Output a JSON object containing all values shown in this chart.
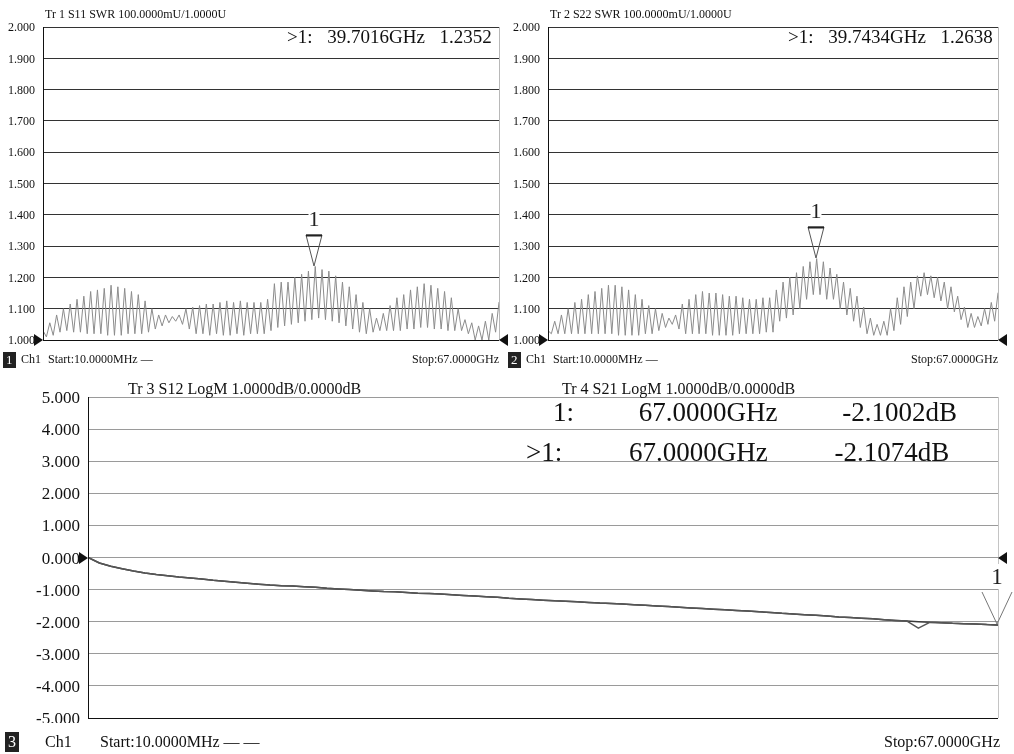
{
  "chart_data": [
    {
      "type": "line",
      "title": "Tr 1 S11 SWR 100.0000mU/1.0000U",
      "categories": [
        null,
        null,
        null,
        null,
        null,
        null,
        null,
        null,
        null,
        null,
        null,
        null,
        null,
        null,
        null,
        null,
        null,
        null,
        null,
        null,
        null,
        null,
        null,
        null,
        null,
        null,
        null,
        null,
        null,
        null,
        null,
        null,
        null,
        null,
        null,
        null,
        null,
        null,
        null,
        null,
        null,
        null,
        null,
        null,
        null,
        null,
        null,
        null,
        null,
        null,
        null,
        null,
        null,
        null,
        null,
        null,
        null,
        null,
        null,
        null,
        null,
        null,
        null,
        null,
        null,
        null,
        null,
        null,
        null,
        null,
        null,
        null,
        null,
        null,
        null,
        null,
        null,
        null,
        null,
        null,
        null,
        null,
        null,
        null,
        null,
        null,
        null,
        null,
        null,
        null,
        null,
        null,
        null,
        null,
        null,
        null,
        null,
        null,
        null,
        null,
        null,
        null,
        null,
        null,
        null,
        null,
        null,
        null,
        null,
        null,
        null,
        null,
        null,
        null,
        null,
        null,
        null,
        null,
        null,
        null,
        null,
        null,
        null,
        null,
        null,
        null,
        null,
        null,
        null,
        null,
        null,
        null,
        null,
        null,
        null
      ],
      "series": [
        {
          "color": "#8c8c8c",
          "values": [
            1.03,
            1.01,
            1.055,
            1.015,
            1.08,
            1.025,
            1.1,
            1.03,
            1.115,
            1.025,
            1.13,
            1.025,
            1.14,
            1.02,
            1.155,
            1.02,
            1.16,
            1.02,
            1.165,
            1.015,
            1.175,
            1.015,
            1.17,
            1.015,
            1.165,
            1.02,
            1.155,
            1.02,
            1.145,
            1.02,
            1.125,
            1.025,
            1.1,
            1.035,
            1.08,
            1.045,
            1.08,
            1.055,
            1.075,
            1.06,
            1.08,
            1.05,
            1.1,
            1.035,
            1.105,
            1.02,
            1.11,
            1.02,
            1.115,
            1.015,
            1.115,
            1.02,
            1.12,
            1.015,
            1.125,
            1.015,
            1.12,
            1.02,
            1.125,
            1.015,
            1.12,
            1.02,
            1.12,
            1.02,
            1.12,
            1.02,
            1.13,
            1.03,
            1.18,
            1.04,
            1.185,
            1.045,
            1.185,
            1.05,
            1.2,
            1.055,
            1.21,
            1.06,
            1.22,
            1.065,
            1.235,
            1.07,
            1.225,
            1.065,
            1.22,
            1.06,
            1.205,
            1.055,
            1.185,
            1.045,
            1.17,
            1.035,
            1.145,
            1.025,
            1.12,
            1.02,
            1.1,
            1.025,
            1.07,
            1.03,
            1.085,
            1.03,
            1.11,
            1.03,
            1.135,
            1.03,
            1.145,
            1.035,
            1.16,
            1.035,
            1.17,
            1.04,
            1.18,
            1.04,
            1.175,
            1.035,
            1.165,
            1.035,
            1.155,
            1.03,
            1.135,
            1.03,
            1.1,
            1.03,
            1.065,
            1.02,
            1.055,
            1,
            1.045,
            1,
            1.06,
            1,
            1.085,
            1.025,
            1.12
          ]
        }
      ],
      "ylim": [
        1,
        2
      ],
      "yticks": [
        {
          "value": 1,
          "label": "1.000"
        },
        {
          "value": 1.1,
          "label": "1.100"
        },
        {
          "value": 1.2,
          "label": "1.200"
        },
        {
          "value": 1.3,
          "label": "1.300"
        },
        {
          "value": 1.4,
          "label": "1.400"
        },
        {
          "value": 1.5,
          "label": "1.500"
        },
        {
          "value": 1.6,
          "label": "1.600"
        },
        {
          "value": 1.7,
          "label": "1.700"
        },
        {
          "value": 1.8,
          "label": "1.800"
        },
        {
          "value": 1.9,
          "label": "1.900"
        },
        {
          "value": 2,
          "label": "2.000"
        }
      ],
      "tick_labels": "y",
      "grid": true,
      "annotations": [
        ">1: 39.7016GHz 1.2352",
        "1",
        "Ch1",
        "Start:10.0000MHz —",
        "Stop:67.0000GHz",
        "1"
      ]
    },
    {
      "type": "line",
      "title": "Tr 2 S22 SWR 100.0000mU/1.0000U",
      "categories": [
        null,
        null,
        null,
        null,
        null,
        null,
        null,
        null,
        null,
        null,
        null,
        null,
        null,
        null,
        null,
        null,
        null,
        null,
        null,
        null,
        null,
        null,
        null,
        null,
        null,
        null,
        null,
        null,
        null,
        null,
        null,
        null,
        null,
        null,
        null,
        null,
        null,
        null,
        null,
        null,
        null,
        null,
        null,
        null,
        null,
        null,
        null,
        null,
        null,
        null,
        null,
        null,
        null,
        null,
        null,
        null,
        null,
        null,
        null,
        null,
        null,
        null,
        null,
        null,
        null,
        null,
        null,
        null,
        null,
        null,
        null,
        null,
        null,
        null,
        null,
        null,
        null,
        null,
        null,
        null,
        null,
        null,
        null,
        null,
        null,
        null,
        null,
        null,
        null,
        null,
        null,
        null,
        null,
        null,
        null,
        null,
        null,
        null,
        null,
        null,
        null,
        null,
        null,
        null,
        null,
        null,
        null,
        null,
        null,
        null,
        null,
        null,
        null,
        null,
        null,
        null,
        null,
        null,
        null,
        null,
        null,
        null,
        null,
        null,
        null,
        null,
        null,
        null,
        null,
        null,
        null,
        null,
        null,
        null,
        null
      ],
      "series": [
        {
          "color": "#8c8c8c",
          "values": [
            1.03,
            1.02,
            1.06,
            1.02,
            1.08,
            1.02,
            1.1,
            1.02,
            1.12,
            1.02,
            1.13,
            1.02,
            1.145,
            1.02,
            1.155,
            1.02,
            1.165,
            1.02,
            1.175,
            1.02,
            1.175,
            1.015,
            1.17,
            1.015,
            1.16,
            1.015,
            1.145,
            1.015,
            1.13,
            1.02,
            1.11,
            1.02,
            1.1,
            1.03,
            1.085,
            1.04,
            1.07,
            1.05,
            1.08,
            1.035,
            1.115,
            1.02,
            1.13,
            1.02,
            1.145,
            1.02,
            1.155,
            1.02,
            1.15,
            1.015,
            1.15,
            1.015,
            1.145,
            1.015,
            1.14,
            1.015,
            1.14,
            1.02,
            1.135,
            1.02,
            1.13,
            1.02,
            1.13,
            1.02,
            1.135,
            1.025,
            1.135,
            1.025,
            1.16,
            1.06,
            1.185,
            1.07,
            1.2,
            1.08,
            1.215,
            1.1,
            1.235,
            1.13,
            1.25,
            1.145,
            1.26,
            1.145,
            1.25,
            1.13,
            1.23,
            1.13,
            1.21,
            1.1,
            1.185,
            1.08,
            1.165,
            1.06,
            1.14,
            1.04,
            1.105,
            1.02,
            1.07,
            1.015,
            1.05,
            1.015,
            1.06,
            1.015,
            1.1,
            1.03,
            1.135,
            1.05,
            1.17,
            1.075,
            1.185,
            1.1,
            1.205,
            1.14,
            1.215,
            1.145,
            1.205,
            1.135,
            1.2,
            1.125,
            1.185,
            1.1,
            1.17,
            1.09,
            1.14,
            1.065,
            1.105,
            1.04,
            1.085,
            1.04,
            1.075,
            1.045,
            1.1,
            1.05,
            1.12,
            1.06,
            1.15
          ]
        }
      ],
      "ylim": [
        1,
        2
      ],
      "yticks": [
        {
          "value": 1,
          "label": "1.000"
        },
        {
          "value": 1.1,
          "label": "1.100"
        },
        {
          "value": 1.2,
          "label": "1.200"
        },
        {
          "value": 1.3,
          "label": "1.300"
        },
        {
          "value": 1.4,
          "label": "1.400"
        },
        {
          "value": 1.5,
          "label": "1.500"
        },
        {
          "value": 1.6,
          "label": "1.600"
        },
        {
          "value": 1.7,
          "label": "1.700"
        },
        {
          "value": 1.8,
          "label": "1.800"
        },
        {
          "value": 1.9,
          "label": "1.900"
        },
        {
          "value": 2,
          "label": "2.000"
        }
      ],
      "tick_labels": "y",
      "grid": true,
      "annotations": [
        ">1: 39.7434GHz 1.2638",
        "2",
        "Ch1",
        "Start:10.0000MHz —",
        "Stop:67.0000GHz",
        "1"
      ]
    },
    {
      "type": "line",
      "title": "Tr 3 S12 LogM 1.0000dB/0.0000dB",
      "subtitle": "Tr 4 S21 LogM 1.0000dB/0.0000dB",
      "categories": [
        null,
        null,
        null,
        null,
        null,
        null,
        null,
        null,
        null,
        null,
        null,
        null,
        null,
        null,
        null,
        null,
        null,
        null,
        null,
        null,
        null,
        null,
        null,
        null,
        null,
        null,
        null,
        null,
        null,
        null,
        null,
        null,
        null,
        null,
        null,
        null,
        null,
        null,
        null,
        null,
        null,
        null,
        null,
        null,
        null,
        null,
        null,
        null,
        null,
        null,
        null,
        null,
        null,
        null,
        null,
        null,
        null,
        null,
        null,
        null,
        null,
        null,
        null,
        null,
        null,
        null,
        null,
        null,
        null,
        null,
        null,
        null,
        null,
        null,
        null,
        null,
        null,
        null,
        null,
        null,
        null
      ],
      "series": [
        {
          "color": "#3a3a3a",
          "values": [
            0,
            -0.17,
            -0.27,
            -0.35,
            -0.42,
            -0.48,
            -0.53,
            -0.57,
            -0.61,
            -0.64,
            -0.67,
            -0.71,
            -0.74,
            -0.77,
            -0.8,
            -0.83,
            -0.86,
            -0.88,
            -0.89,
            -0.91,
            -0.93,
            -0.96,
            -0.98,
            -1,
            -1.02,
            -1.04,
            -1.06,
            -1.07,
            -1.09,
            -1.11,
            -1.12,
            -1.14,
            -1.16,
            -1.18,
            -1.2,
            -1.22,
            -1.24,
            -1.27,
            -1.29,
            -1.31,
            -1.33,
            -1.35,
            -1.36,
            -1.38,
            -1.4,
            -1.42,
            -1.43,
            -1.45,
            -1.47,
            -1.49,
            -1.51,
            -1.53,
            -1.55,
            -1.57,
            -1.59,
            -1.61,
            -1.63,
            -1.65,
            -1.67,
            -1.69,
            -1.71,
            -1.74,
            -1.76,
            -1.78,
            -1.8,
            -1.82,
            -1.85,
            -1.87,
            -1.89,
            -1.91,
            -1.94,
            -1.96,
            -1.98,
            -2,
            -2.02,
            -2.03,
            -2.05,
            -2.06,
            -2.07,
            -2.09,
            -2.1
          ]
        },
        {
          "color": "#555555",
          "values": [
            0,
            -0.17,
            -0.27,
            -0.35,
            -0.42,
            -0.48,
            -0.53,
            -0.57,
            -0.61,
            -0.64,
            -0.67,
            -0.71,
            -0.74,
            -0.77,
            -0.8,
            -0.83,
            -0.86,
            -0.88,
            -0.89,
            -0.91,
            -0.93,
            -0.96,
            -0.98,
            -1,
            -1.02,
            -1.04,
            -1.06,
            -1.07,
            -1.09,
            -1.11,
            -1.12,
            -1.14,
            -1.16,
            -1.18,
            -1.2,
            -1.22,
            -1.24,
            -1.27,
            -1.29,
            -1.31,
            -1.33,
            -1.35,
            -1.36,
            -1.38,
            -1.4,
            -1.42,
            -1.43,
            -1.45,
            -1.47,
            -1.49,
            -1.51,
            -1.53,
            -1.55,
            -1.57,
            -1.59,
            -1.61,
            -1.63,
            -1.65,
            -1.67,
            -1.69,
            -1.71,
            -1.74,
            -1.76,
            -1.78,
            -1.8,
            -1.82,
            -1.85,
            -1.87,
            -1.89,
            -1.91,
            -1.94,
            -1.96,
            -1.98,
            -2.2,
            -2.02,
            -2.03,
            -2.05,
            -2.06,
            -2.07,
            -2.09,
            -2.11
          ]
        }
      ],
      "ylim": [
        -5,
        5
      ],
      "yticks": [
        {
          "value": -5,
          "label": "-5.000"
        },
        {
          "value": -4,
          "label": "-4.000"
        },
        {
          "value": -3,
          "label": "-3.000"
        },
        {
          "value": -2,
          "label": "-2.000"
        },
        {
          "value": -1,
          "label": "-1.000"
        },
        {
          "value": 0,
          "label": "0.000"
        },
        {
          "value": 1,
          "label": "1.000"
        },
        {
          "value": 2,
          "label": "2.000"
        },
        {
          "value": 3,
          "label": "3.000"
        },
        {
          "value": 4,
          "label": "4.000"
        },
        {
          "value": 5,
          "label": "5.000"
        }
      ],
      "tick_labels": "y",
      "grid": true,
      "annotations": [
        "1: 67.0000GHz -2.1002dB",
        ">1: 67.0000GHz -2.1074dB",
        "3",
        "Ch1",
        "Start:10.0000MHz — —",
        "Stop:67.0000GHz",
        "1"
      ]
    }
  ]
}
